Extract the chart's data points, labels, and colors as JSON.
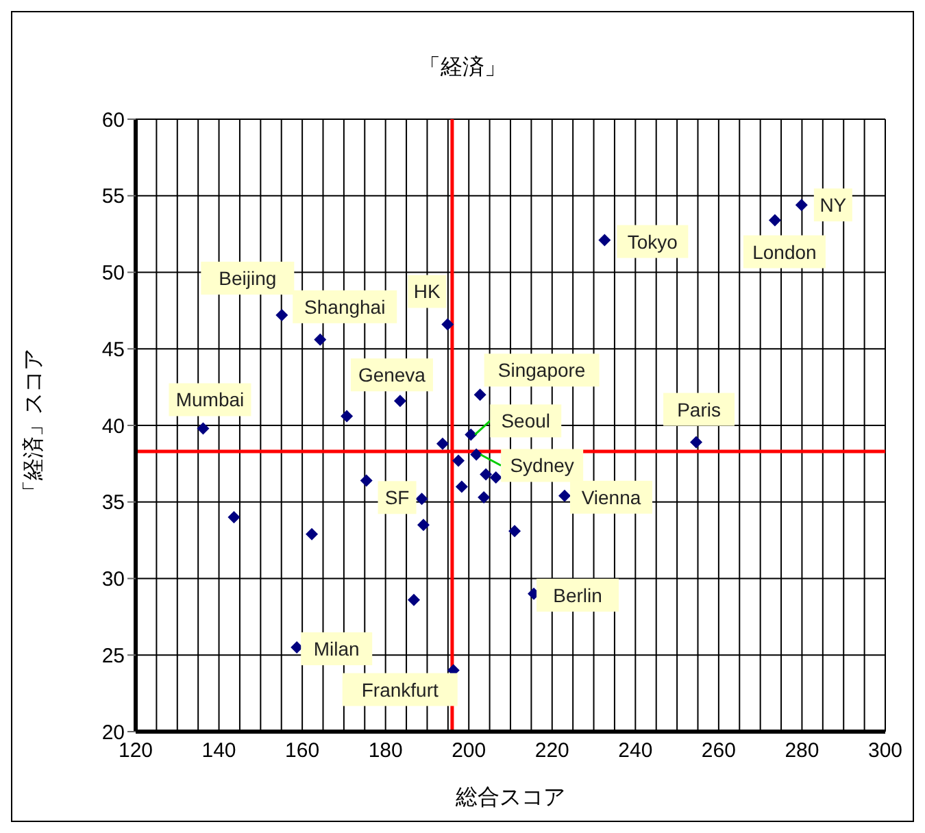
{
  "chart_data": {
    "type": "scatter",
    "title": "「経済」",
    "xlabel": "総合スコア",
    "ylabel": "「経済」スコア",
    "x": [
      136.2,
      155.1,
      164.3,
      194.9,
      183.5,
      170.7,
      202.7,
      232.6,
      273.5,
      279.9,
      254.6,
      200.5,
      201.8,
      197.5,
      193.7,
      204.1,
      206.5,
      198.3,
      203.6,
      223.0,
      211.0,
      215.6,
      196.3,
      175.4,
      188.7,
      189.1,
      143.6,
      162.3,
      186.8,
      158.7
    ],
    "values": [
      39.8,
      47.2,
      45.6,
      46.6,
      41.6,
      40.6,
      42.0,
      52.1,
      53.4,
      54.4,
      38.9,
      39.4,
      38.1,
      37.7,
      38.8,
      36.8,
      36.6,
      36.0,
      35.3,
      35.4,
      33.1,
      29.0,
      24.0,
      36.4,
      35.2,
      33.5,
      34.0,
      32.9,
      28.6,
      25.5
    ],
    "color": "#000080",
    "marker": "diamond",
    "xlim": [
      120,
      300
    ],
    "xticks": [
      120,
      {
        "value": 125,
        "label": null
      },
      {
        "value": 130,
        "label": null
      },
      {
        "value": 135,
        "label": null
      },
      140,
      {
        "value": 145,
        "label": null
      },
      {
        "value": 150,
        "label": null
      },
      {
        "value": 155,
        "label": null
      },
      160,
      {
        "value": 165,
        "label": null
      },
      {
        "value": 170,
        "label": null
      },
      {
        "value": 175,
        "label": null
      },
      180,
      {
        "value": 185,
        "label": null
      },
      {
        "value": 190,
        "label": null
      },
      {
        "value": 195,
        "label": null
      },
      200,
      {
        "value": 205,
        "label": null
      },
      {
        "value": 210,
        "label": null
      },
      {
        "value": 215,
        "label": null
      },
      220,
      {
        "value": 225,
        "label": null
      },
      {
        "value": 230,
        "label": null
      },
      {
        "value": 235,
        "label": null
      },
      240,
      {
        "value": 245,
        "label": null
      },
      {
        "value": 250,
        "label": null
      },
      {
        "value": 255,
        "label": null
      },
      260,
      {
        "value": 265,
        "label": null
      },
      {
        "value": 270,
        "label": null
      },
      {
        "value": 275,
        "label": null
      },
      280,
      {
        "value": 285,
        "label": null
      },
      {
        "value": 290,
        "label": null
      },
      {
        "value": 295,
        "label": null
      },
      300
    ],
    "ylim": [
      20,
      60
    ],
    "yticks": [
      20,
      25,
      30,
      35,
      40,
      45,
      50,
      55,
      60
    ],
    "grid": true,
    "ref_lines": [
      {
        "axis": "x",
        "value": 196,
        "color": "#ff0000"
      },
      {
        "axis": "y",
        "value": 38.3,
        "color": "#ff0000"
      }
    ],
    "annotations": [
      {
        "text": "Mumbai",
        "x": 136.2,
        "y": 39.8
      },
      {
        "text": "Beijing",
        "x": 155.1,
        "y": 47.2
      },
      {
        "text": "Shanghai",
        "x": 164.3,
        "y": 45.6
      },
      {
        "text": "HK",
        "x": 194.9,
        "y": 46.6
      },
      {
        "text": "Geneva",
        "x": 183.5,
        "y": 41.6
      },
      {
        "text": "Singapore",
        "x": 202.7,
        "y": 42.0
      },
      {
        "text": "Seoul",
        "x": 200.5,
        "y": 39.4
      },
      {
        "text": "Sydney",
        "x": 201.8,
        "y": 38.1
      },
      {
        "text": "Tokyo",
        "x": 232.6,
        "y": 52.1
      },
      {
        "text": "London",
        "x": 273.5,
        "y": 53.4
      },
      {
        "text": "NY",
        "x": 279.9,
        "y": 54.4
      },
      {
        "text": "Paris",
        "x": 254.6,
        "y": 38.9
      },
      {
        "text": "Vienna",
        "x": 223.0,
        "y": 35.4
      },
      {
        "text": "Berlin",
        "x": 215.6,
        "y": 29.0
      },
      {
        "text": "Frankfurt",
        "x": 196.3,
        "y": 24.0
      },
      {
        "text": "SF",
        "x": 188.7,
        "y": 35.2
      },
      {
        "text": "Milan",
        "x": 158.7,
        "y": 25.5
      }
    ]
  }
}
